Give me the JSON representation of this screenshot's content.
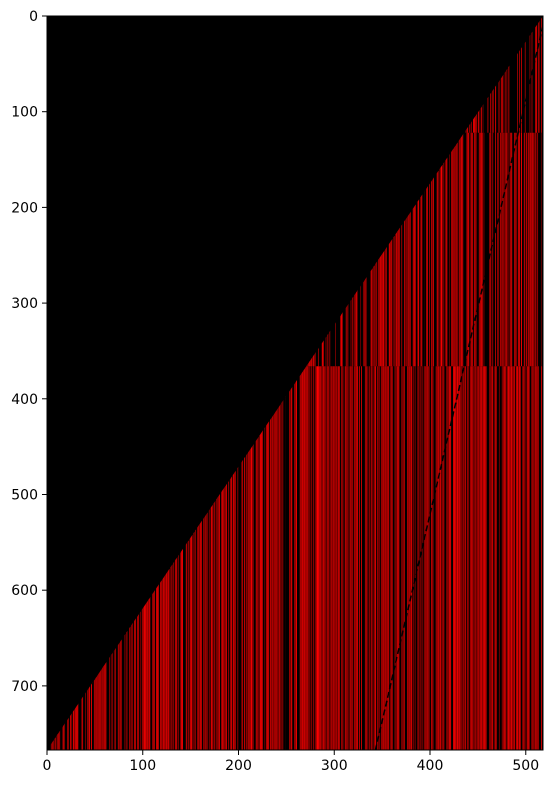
{
  "chart_data": {
    "type": "heatmap",
    "title": "",
    "xlabel": "",
    "ylabel": "",
    "xlim": [
      0,
      518
    ],
    "ylim": [
      767,
      0
    ],
    "y_axis_inverted": true,
    "x_ticks": [
      "0",
      "100",
      "200",
      "300",
      "400",
      "500"
    ],
    "x_tick_values": [
      0,
      100,
      200,
      300,
      400,
      500
    ],
    "y_ticks": [
      "0",
      "100",
      "200",
      "300",
      "400",
      "500",
      "600",
      "700"
    ],
    "y_tick_values": [
      0,
      100,
      200,
      300,
      400,
      500,
      600,
      700
    ],
    "colormap": [
      "#000000",
      "#ff0000"
    ],
    "background_color": "#000000",
    "triangle_boundary": {
      "description": "cells are black above the diagonal from (x=518,y=0) to (x=0,y=767)",
      "start": [
        518,
        0
      ],
      "end": [
        0,
        767
      ]
    },
    "diagonal_dark_line": {
      "start": [
        518,
        10
      ],
      "end": [
        343,
        767
      ]
    },
    "horizontal_bands": [
      {
        "y_start": 0,
        "y_end": 122,
        "stripe_density": "sparse"
      },
      {
        "y_start": 122,
        "y_end": 366,
        "stripe_density": "medium"
      },
      {
        "y_start": 366,
        "y_end": 767,
        "stripe_density": "dense"
      }
    ],
    "grid": false,
    "legend": "none"
  }
}
